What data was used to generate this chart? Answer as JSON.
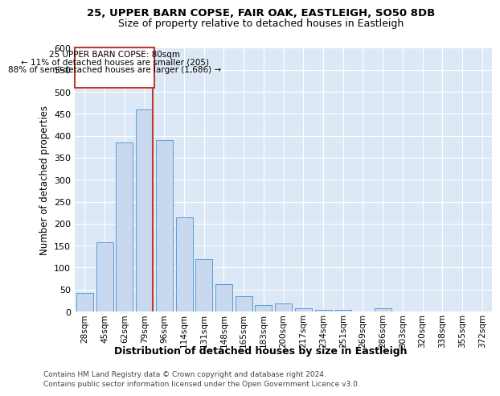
{
  "title_line1": "25, UPPER BARN COPSE, FAIR OAK, EASTLEIGH, SO50 8DB",
  "title_line2": "Size of property relative to detached houses in Eastleigh",
  "xlabel": "Distribution of detached houses by size in Eastleigh",
  "ylabel": "Number of detached properties",
  "categories": [
    "28sqm",
    "45sqm",
    "62sqm",
    "79sqm",
    "96sqm",
    "114sqm",
    "131sqm",
    "148sqm",
    "165sqm",
    "183sqm",
    "200sqm",
    "217sqm",
    "234sqm",
    "251sqm",
    "269sqm",
    "286sqm",
    "303sqm",
    "320sqm",
    "338sqm",
    "355sqm",
    "372sqm"
  ],
  "values": [
    42,
    158,
    385,
    460,
    390,
    215,
    120,
    62,
    35,
    15,
    18,
    8,
    4,
    3,
    0,
    7,
    0,
    0,
    0,
    0,
    0
  ],
  "bar_color": "#c8d9ef",
  "bar_edge_color": "#5b9bd5",
  "vline_x_index": 3.43,
  "property_label": "25 UPPER BARN COPSE: 80sqm",
  "annotation_line1": "← 11% of detached houses are smaller (205)",
  "annotation_line2": "88% of semi-detached houses are larger (1,686) →",
  "vline_color": "#c0392b",
  "annotation_box_color": "#c0392b",
  "ylim": [
    0,
    600
  ],
  "yticks": [
    0,
    50,
    100,
    150,
    200,
    250,
    300,
    350,
    400,
    450,
    500,
    550,
    600
  ],
  "footer_line1": "Contains HM Land Registry data © Crown copyright and database right 2024.",
  "footer_line2": "Contains public sector information licensed under the Open Government Licence v3.0.",
  "bg_color": "#ffffff",
  "plot_bg_color": "#dce8f5"
}
